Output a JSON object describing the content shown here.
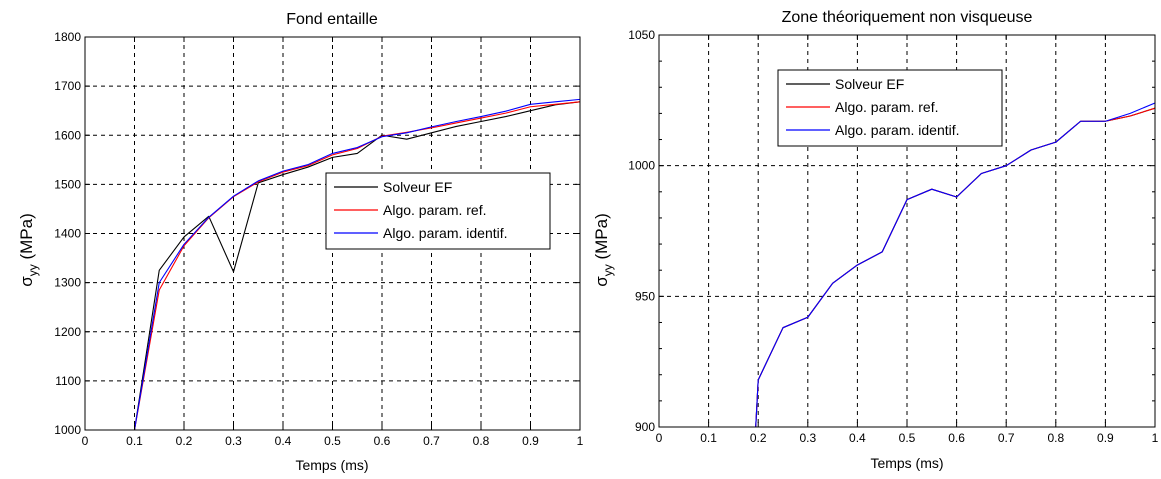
{
  "chart_data": [
    {
      "type": "line",
      "title": "Fond entaille",
      "xlabel": "Temps (ms)",
      "ylabel": "σyy (MPa)",
      "ylabel_main": "σ",
      "ylabel_sub": "yy",
      "ylabel_unit": " (MPa)",
      "xlim": [
        0,
        1
      ],
      "ylim": [
        1000,
        1800
      ],
      "xticks": [
        0,
        0.1,
        0.2,
        0.3,
        0.4,
        0.5,
        0.6,
        0.7,
        0.8,
        0.9,
        1
      ],
      "xtick_labels": [
        "0",
        "0.1",
        "0.2",
        "0.3",
        "0.4",
        "0.5",
        "0.6",
        "0.7",
        "0.8",
        "0.9",
        "1"
      ],
      "yticks": [
        1000,
        1100,
        1200,
        1300,
        1400,
        1500,
        1600,
        1700,
        1800
      ],
      "ytick_labels": [
        "1000",
        "1100",
        "1200",
        "1300",
        "1400",
        "1500",
        "1600",
        "1700",
        "1800"
      ],
      "grid": true,
      "legend_position": "center-right",
      "series": [
        {
          "name": "Solveur EF",
          "color": "#000000",
          "x": [
            0.1,
            0.15,
            0.2,
            0.25,
            0.3,
            0.35,
            0.4,
            0.45,
            0.5,
            0.55,
            0.6,
            0.65,
            0.7,
            0.75,
            0.8,
            0.85,
            0.9,
            0.95,
            1.0
          ],
          "y": [
            1000,
            1325,
            1393,
            1435,
            1322,
            1503,
            1520,
            1535,
            1555,
            1563,
            1600,
            1592,
            1605,
            1618,
            1628,
            1638,
            1650,
            1662,
            1668
          ]
        },
        {
          "name": "Algo. param. ref.",
          "color": "#ff0000",
          "x": [
            0.1,
            0.15,
            0.2,
            0.25,
            0.3,
            0.35,
            0.4,
            0.45,
            0.5,
            0.55,
            0.6,
            0.65,
            0.7,
            0.75,
            0.8,
            0.85,
            0.9,
            0.95,
            1.0
          ],
          "y": [
            1000,
            1285,
            1375,
            1432,
            1475,
            1505,
            1525,
            1538,
            1560,
            1573,
            1598,
            1606,
            1615,
            1625,
            1635,
            1645,
            1658,
            1663,
            1668
          ]
        },
        {
          "name": "Algo. param. identif.",
          "color": "#0000ff",
          "x": [
            0.1,
            0.15,
            0.2,
            0.25,
            0.3,
            0.35,
            0.4,
            0.45,
            0.5,
            0.55,
            0.6,
            0.65,
            0.7,
            0.75,
            0.8,
            0.85,
            0.9,
            0.95,
            1.0
          ],
          "y": [
            1000,
            1300,
            1378,
            1433,
            1476,
            1507,
            1527,
            1540,
            1563,
            1575,
            1597,
            1605,
            1617,
            1628,
            1638,
            1649,
            1663,
            1668,
            1673
          ]
        }
      ]
    },
    {
      "type": "line",
      "title": "Zone théoriquement non visqueuse",
      "xlabel": "Temps (ms)",
      "ylabel": "σyy (MPa)",
      "ylabel_main": "σ",
      "ylabel_sub": "yy",
      "ylabel_unit": " (MPa)",
      "xlim": [
        0,
        1
      ],
      "ylim": [
        900,
        1050
      ],
      "xticks": [
        0,
        0.1,
        0.2,
        0.3,
        0.4,
        0.5,
        0.6,
        0.7,
        0.8,
        0.9,
        1
      ],
      "xtick_labels": [
        "0",
        "0.1",
        "0.2",
        "0.3",
        "0.4",
        "0.5",
        "0.6",
        "0.7",
        "0.8",
        "0.9",
        "1"
      ],
      "yticks": [
        900,
        950,
        1000,
        1050
      ],
      "ytick_labels": [
        "900",
        "950",
        "1000",
        "1050"
      ],
      "minor_yticks": [
        910,
        920,
        930,
        940,
        960,
        970,
        980,
        990,
        1010,
        1020,
        1030,
        1040
      ],
      "grid": true,
      "legend_position": "top-left",
      "series": [
        {
          "name": "Solveur EF",
          "color": "#000000",
          "x": [
            0.195,
            0.2,
            0.25,
            0.3,
            0.35,
            0.4,
            0.45,
            0.5,
            0.55,
            0.6,
            0.65,
            0.7,
            0.75,
            0.8,
            0.85,
            0.9,
            0.95,
            1.0
          ],
          "y": [
            900,
            918,
            938,
            942,
            955,
            962,
            967,
            987,
            991,
            988,
            997,
            1000,
            1006,
            1009,
            1017,
            1017,
            1019,
            1022
          ]
        },
        {
          "name": "Algo. param. ref.",
          "color": "#ff0000",
          "x": [
            0.195,
            0.2,
            0.25,
            0.3,
            0.35,
            0.4,
            0.45,
            0.5,
            0.55,
            0.6,
            0.65,
            0.7,
            0.75,
            0.8,
            0.85,
            0.9,
            0.95,
            1.0
          ],
          "y": [
            900,
            918,
            938,
            942,
            955,
            962,
            967,
            987,
            991,
            988,
            997,
            1000,
            1006,
            1009,
            1017,
            1017,
            1019,
            1022
          ]
        },
        {
          "name": "Algo. param. identif.",
          "color": "#0000ff",
          "x": [
            0.195,
            0.2,
            0.25,
            0.3,
            0.35,
            0.4,
            0.45,
            0.5,
            0.55,
            0.6,
            0.65,
            0.7,
            0.75,
            0.8,
            0.85,
            0.9,
            0.95,
            1.0
          ],
          "y": [
            900,
            918,
            938,
            942,
            955,
            962,
            967,
            987,
            991,
            988,
            997,
            1000,
            1006,
            1009,
            1017,
            1017,
            1020,
            1024
          ]
        }
      ]
    }
  ]
}
